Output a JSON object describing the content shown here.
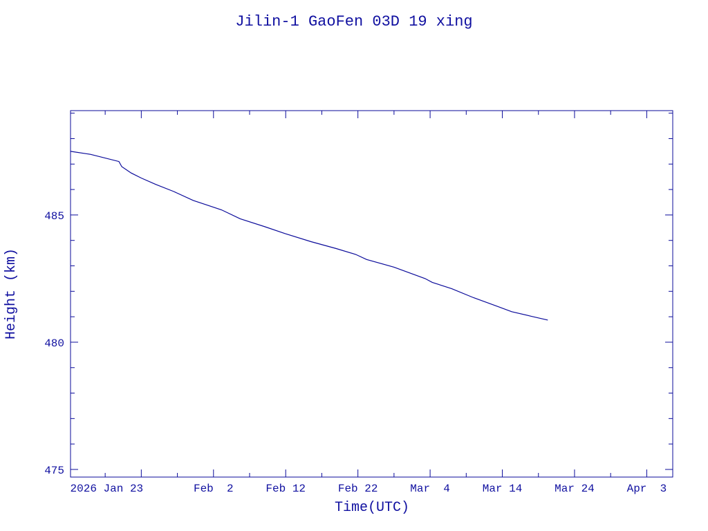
{
  "chart_data": {
    "type": "line",
    "title": "Jilin-1 GaoFen 03D 19 xing",
    "xlabel": "Time(UTC)",
    "ylabel": "Height (km)",
    "x_units": "day of year 2026 (Jan 1 = 1)",
    "xlim": [
      13.2,
      96.6
    ],
    "ylim": [
      474.7,
      489.1
    ],
    "grid": false,
    "color": "#0a0a9a",
    "x_ticks": [
      {
        "value": 23,
        "label": "2026 Jan 23"
      },
      {
        "value": 33,
        "label": "Feb  2"
      },
      {
        "value": 43,
        "label": "Feb 12"
      },
      {
        "value": 53,
        "label": "Feb 22"
      },
      {
        "value": 63,
        "label": "Mar  4"
      },
      {
        "value": 73,
        "label": "Mar 14"
      },
      {
        "value": 83,
        "label": "Mar 24"
      },
      {
        "value": 93,
        "label": "Apr  3"
      }
    ],
    "y_ticks": [
      {
        "value": 475,
        "label": "475"
      },
      {
        "value": 480,
        "label": "480"
      },
      {
        "value": 485,
        "label": "485"
      }
    ],
    "series": [
      {
        "name": "Height",
        "x": [
          13.2,
          16,
          19.9,
          20.3,
          21.6,
          23,
          25,
          27.5,
          30.2,
          32,
          34.1,
          36.7,
          40,
          42.9,
          46.5,
          50,
          52.7,
          54.2,
          58,
          62.3,
          63.3,
          66,
          69,
          72.4,
          74.3,
          77,
          79.3
        ],
        "y": [
          487.5,
          487.38,
          487.1,
          486.9,
          486.65,
          486.45,
          486.2,
          485.92,
          485.57,
          485.4,
          485.2,
          484.85,
          484.55,
          484.27,
          483.95,
          483.68,
          483.45,
          483.25,
          482.95,
          482.5,
          482.35,
          482.1,
          481.75,
          481.4,
          481.2,
          481.02,
          480.87
        ]
      }
    ]
  }
}
